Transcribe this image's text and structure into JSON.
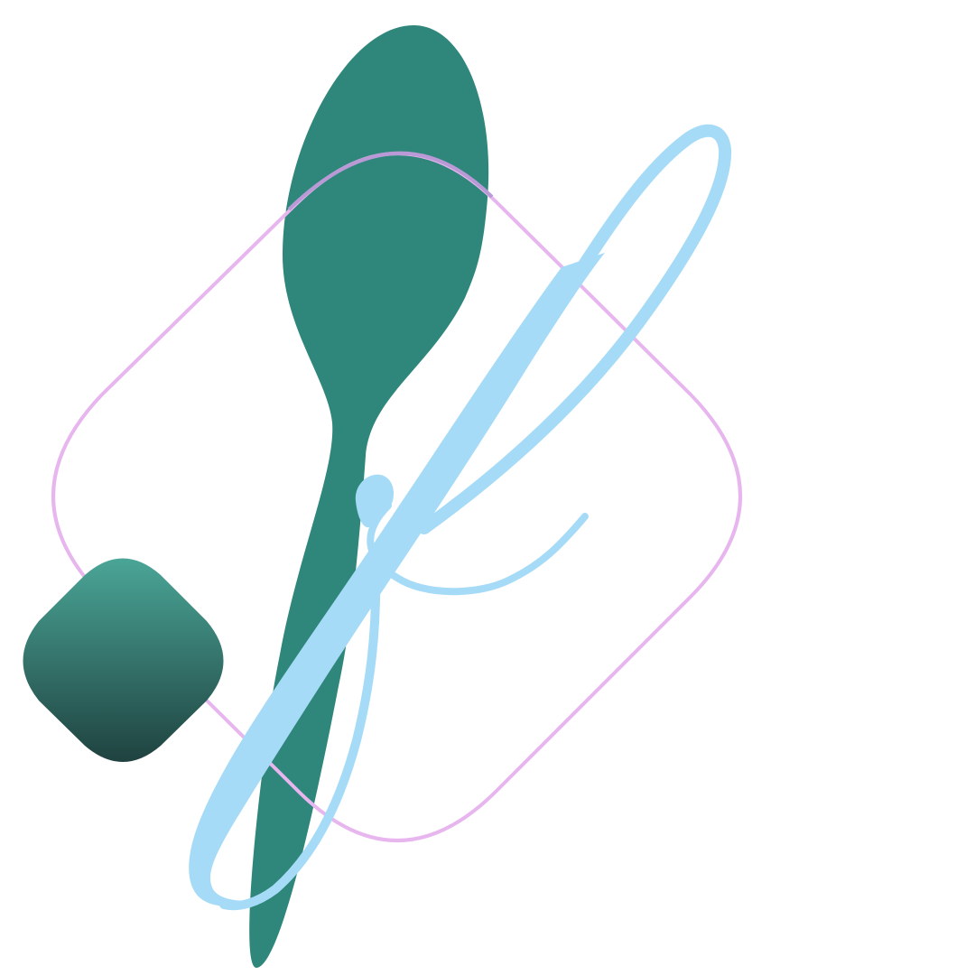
{
  "artwork": {
    "colors": {
      "background": "#ffffff",
      "spoon_fill": "#2f877b",
      "outline_stroke": "#e8b6ef",
      "outline_stroke_overlap": "#b99ad6",
      "script_f_fill": "#a6dbf7",
      "square_gradient_top": "#4aa597",
      "square_gradient_bottom": "#1f423f"
    },
    "shapes": [
      {
        "name": "teal-spoon",
        "kind": "decorative-blob"
      },
      {
        "name": "pink-rounded-diamond-outline",
        "kind": "outline"
      },
      {
        "name": "light-blue-script-f",
        "kind": "calligraphic-letterform"
      },
      {
        "name": "teal-gradient-rounded-diamond",
        "kind": "filled-shape"
      }
    ]
  }
}
